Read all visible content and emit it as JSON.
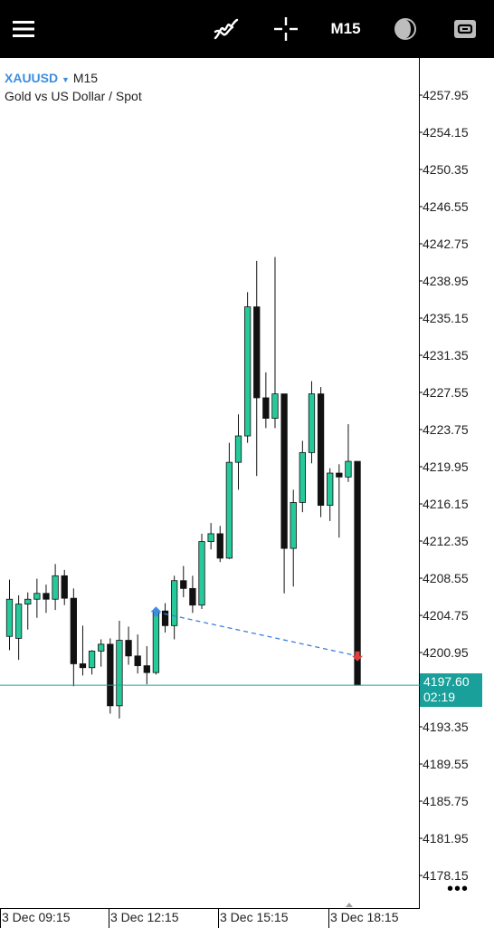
{
  "header": {
    "menu_icon": "hamburger-menu-icon",
    "indicators_icon": "indicators-icon",
    "crosshair_icon": "crosshair-icon",
    "timeframe": "M15",
    "objects_icon": "objects-icon",
    "trade_icon": "trade-icon"
  },
  "symbol": {
    "name": "XAUUSD",
    "timeframe": "M15",
    "description": "Gold vs US Dollar / Spot"
  },
  "current_price": {
    "price": "4197.60",
    "countdown": "02:19"
  },
  "colors": {
    "bull": "#26c99a",
    "bear": "#111111",
    "price_line": "#1aa09a",
    "trade_line": "#3d7ee0",
    "buy_marker": "#3d8ee0",
    "sell_marker": "#e04040"
  },
  "chart_data": {
    "type": "candlestick",
    "symbol": "XAUUSD",
    "timeframe": "M15",
    "y_ticks": [
      "4257.95",
      "4254.15",
      "4250.35",
      "4246.55",
      "4242.75",
      "4238.95",
      "4235.15",
      "4231.35",
      "4227.55",
      "4223.75",
      "4219.95",
      "4216.15",
      "4212.35",
      "4208.55",
      "4204.75",
      "4200.95",
      "4193.35",
      "4189.55",
      "4185.75",
      "4181.95",
      "4178.15"
    ],
    "x_ticks": [
      "3 Dec 09:15",
      "3 Dec 12:15",
      "3 Dec 15:15",
      "3 Dec 18:15"
    ],
    "ylim": [
      4175.0,
      4262.0
    ],
    "candles": [
      {
        "o": 4202.6,
        "h": 4208.4,
        "l": 4201.2,
        "c": 4206.4
      },
      {
        "o": 4202.4,
        "h": 4206.8,
        "l": 4200.2,
        "c": 4205.9
      },
      {
        "o": 4205.9,
        "h": 4207.1,
        "l": 4203.3,
        "c": 4206.4
      },
      {
        "o": 4206.4,
        "h": 4208.5,
        "l": 4204.5,
        "c": 4207.0
      },
      {
        "o": 4207.0,
        "h": 4207.9,
        "l": 4205.0,
        "c": 4206.4
      },
      {
        "o": 4206.4,
        "h": 4210.0,
        "l": 4205.3,
        "c": 4208.8
      },
      {
        "o": 4208.8,
        "h": 4209.4,
        "l": 4205.8,
        "c": 4206.5
      },
      {
        "o": 4206.5,
        "h": 4207.5,
        "l": 4197.5,
        "c": 4199.8
      },
      {
        "o": 4199.8,
        "h": 4203.7,
        "l": 4198.6,
        "c": 4199.4
      },
      {
        "o": 4199.4,
        "h": 4201.2,
        "l": 4198.7,
        "c": 4201.1
      },
      {
        "o": 4201.1,
        "h": 4202.3,
        "l": 4199.5,
        "c": 4201.8
      },
      {
        "o": 4201.8,
        "h": 4202.4,
        "l": 4194.7,
        "c": 4195.5
      },
      {
        "o": 4195.5,
        "h": 4204.2,
        "l": 4194.2,
        "c": 4202.2
      },
      {
        "o": 4202.2,
        "h": 4203.6,
        "l": 4199.7,
        "c": 4200.6
      },
      {
        "o": 4200.6,
        "h": 4202.8,
        "l": 4198.8,
        "c": 4199.6
      },
      {
        "o": 4199.6,
        "h": 4201.6,
        "l": 4197.7,
        "c": 4198.9
      },
      {
        "o": 4198.9,
        "h": 4205.6,
        "l": 4198.7,
        "c": 4205.2
      },
      {
        "o": 4205.2,
        "h": 4206.0,
        "l": 4203.0,
        "c": 4203.7
      },
      {
        "o": 4203.7,
        "h": 4208.8,
        "l": 4202.3,
        "c": 4208.3
      },
      {
        "o": 4208.3,
        "h": 4209.8,
        "l": 4206.6,
        "c": 4207.5
      },
      {
        "o": 4207.5,
        "h": 4208.8,
        "l": 4205.0,
        "c": 4205.8
      },
      {
        "o": 4205.8,
        "h": 4213.1,
        "l": 4205.4,
        "c": 4212.3
      },
      {
        "o": 4212.3,
        "h": 4214.2,
        "l": 4211.5,
        "c": 4213.1
      },
      {
        "o": 4213.1,
        "h": 4213.9,
        "l": 4210.2,
        "c": 4210.6
      },
      {
        "o": 4210.6,
        "h": 4222.4,
        "l": 4210.5,
        "c": 4220.4
      },
      {
        "o": 4220.4,
        "h": 4225.3,
        "l": 4217.6,
        "c": 4223.1
      },
      {
        "o": 4223.1,
        "h": 4237.8,
        "l": 4222.4,
        "c": 4236.3
      },
      {
        "o": 4236.3,
        "h": 4241.0,
        "l": 4219.0,
        "c": 4227.0
      },
      {
        "o": 4227.0,
        "h": 4229.6,
        "l": 4223.9,
        "c": 4224.9
      },
      {
        "o": 4224.9,
        "h": 4241.4,
        "l": 4223.9,
        "c": 4227.4
      },
      {
        "o": 4227.4,
        "h": 4227.4,
        "l": 4207.0,
        "c": 4211.6
      },
      {
        "o": 4211.6,
        "h": 4217.6,
        "l": 4207.7,
        "c": 4216.3
      },
      {
        "o": 4216.3,
        "h": 4222.6,
        "l": 4215.3,
        "c": 4221.4
      },
      {
        "o": 4221.4,
        "h": 4228.7,
        "l": 4220.3,
        "c": 4227.4
      },
      {
        "o": 4227.4,
        "h": 4228.1,
        "l": 4214.8,
        "c": 4216.0
      },
      {
        "o": 4216.0,
        "h": 4219.8,
        "l": 4214.4,
        "c": 4219.3
      },
      {
        "o": 4219.3,
        "h": 4220.2,
        "l": 4212.7,
        "c": 4218.9
      },
      {
        "o": 4218.9,
        "h": 4224.3,
        "l": 4218.4,
        "c": 4220.5
      },
      {
        "o": 4220.5,
        "h": 4220.5,
        "l": 4197.6,
        "c": 4197.6
      }
    ],
    "trade_line": {
      "from_candle": 16,
      "from_price": 4205.1,
      "to_candle": 38,
      "to_price": 4200.6
    }
  }
}
